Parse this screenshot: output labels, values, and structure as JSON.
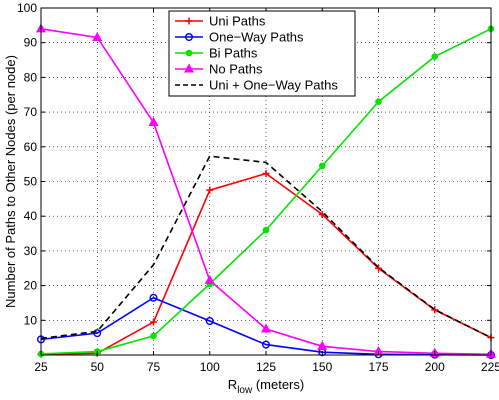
{
  "chart_data": {
    "type": "line",
    "xlabel": "R",
    "xlabel_sub": "low",
    "xlabel_unit": " (meters)",
    "ylabel": "Number of Paths to Other Nodes (per node)",
    "xlim": [
      25,
      225
    ],
    "ylim": [
      0,
      100
    ],
    "x_ticks": [
      25,
      50,
      75,
      100,
      125,
      150,
      175,
      200,
      225
    ],
    "y_ticks": [
      10,
      20,
      30,
      40,
      50,
      60,
      70,
      80,
      90,
      100
    ],
    "grid": true,
    "legend_position": "top-center",
    "x": [
      25,
      50,
      75,
      100,
      125,
      150,
      175,
      200,
      225
    ],
    "series": [
      {
        "name": "Uni Paths",
        "color": "#ff0000",
        "marker": "plus",
        "dash": "solid",
        "values": [
          0.2,
          0.5,
          9.5,
          47.5,
          52.3,
          40.5,
          25.0,
          13.0,
          5.0
        ]
      },
      {
        "name": "One−Way Paths",
        "color": "#0000ff",
        "marker": "circle",
        "dash": "solid",
        "values": [
          4.5,
          6.3,
          16.5,
          9.8,
          3.0,
          0.8,
          0.2,
          0.1,
          0.0
        ]
      },
      {
        "name": "Bi Paths",
        "color": "#00e600",
        "marker": "dot",
        "dash": "solid",
        "values": [
          0.3,
          1.0,
          5.5,
          20.5,
          36.0,
          54.5,
          73.0,
          86.0,
          94.0
        ]
      },
      {
        "name": "No Paths",
        "color": "#ff00ff",
        "marker": "triangle",
        "dash": "solid",
        "values": [
          94.0,
          91.5,
          67.0,
          21.5,
          7.5,
          2.5,
          1.0,
          0.5,
          0.2
        ]
      },
      {
        "name": "Uni + One−Way Paths",
        "color": "#000000",
        "marker": "none",
        "dash": "dashed",
        "values": [
          4.8,
          6.8,
          26.0,
          57.3,
          55.5,
          41.3,
          25.2,
          13.1,
          5.0
        ]
      }
    ]
  }
}
